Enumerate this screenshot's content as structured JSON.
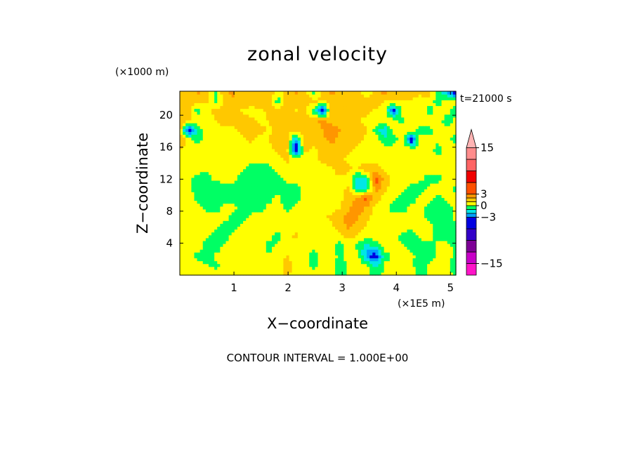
{
  "chart_data": {
    "type": "heatmap",
    "title": "zonal velocity",
    "xlabel": "X−coordinate",
    "ylabel": "Z−coordinate",
    "x_unit": "(×1E5 m)",
    "y_unit": "(×1000 m)",
    "time_label": "t=21000 s",
    "footer": "CONTOUR INTERVAL = 1.000E+00",
    "xlim": [
      0,
      5.1
    ],
    "ylim": [
      0,
      23
    ],
    "x_ticks": [
      "1",
      "2",
      "3",
      "4",
      "5"
    ],
    "x_tick_values": [
      1,
      2,
      3,
      4,
      5
    ],
    "y_ticks": [
      "4",
      "8",
      "12",
      "16",
      "20"
    ],
    "y_tick_values": [
      4,
      8,
      12,
      16,
      20
    ],
    "colorbar": {
      "tick_labels": [
        "15",
        "3",
        "0",
        "−3",
        "−15"
      ],
      "tick_values": [
        15,
        3,
        0,
        -3,
        -15
      ],
      "levels": [
        {
          "from": -18,
          "to": -15,
          "color": "#ff14c8"
        },
        {
          "from": -15,
          "to": -12,
          "color": "#c800c8"
        },
        {
          "from": -12,
          "to": -9,
          "color": "#7d0096"
        },
        {
          "from": -9,
          "to": -6,
          "color": "#3200c8"
        },
        {
          "from": -6,
          "to": -3,
          "color": "#0000e1"
        },
        {
          "from": -3,
          "to": -2,
          "color": "#00a0ff"
        },
        {
          "from": -2,
          "to": -1,
          "color": "#00e6e6"
        },
        {
          "from": -1,
          "to": 0,
          "color": "#00ff64"
        },
        {
          "from": 0,
          "to": 1,
          "color": "#ffff00"
        },
        {
          "from": 1,
          "to": 2,
          "color": "#ffc800"
        },
        {
          "from": 2,
          "to": 3,
          "color": "#ff9600"
        },
        {
          "from": 3,
          "to": 6,
          "color": "#ff5000"
        },
        {
          "from": 6,
          "to": 9,
          "color": "#f00000"
        },
        {
          "from": 9,
          "to": 12,
          "color": "#ff6464"
        },
        {
          "from": 12,
          "to": 15,
          "color": "#ff8c8c"
        },
        {
          "from": 15,
          "to": 18,
          "color": "#ffb4b4"
        }
      ]
    },
    "field": {
      "nx": 32,
      "nz": 20,
      "x_range": [
        0,
        5.1
      ],
      "z_range": [
        0,
        23
      ],
      "note_rows": "rows listed from bottom (z=0) to top (z=23), m/s",
      "values": [
        [
          0.5,
          0.4,
          0.3,
          0.6,
          0.4,
          0.2,
          0.5,
          0.7,
          0.4,
          0.3,
          0.5,
          0.8,
          1.2,
          0.6,
          0.3,
          0.5,
          0.7,
          0.2,
          -0.4,
          0.2,
          0.6,
          0.4,
          -0.6,
          0.3,
          0.5,
          0.8,
          0.4,
          -0.3,
          0.2,
          0.4,
          0.3,
          -0.2
        ],
        [
          0.3,
          0.6,
          0.4,
          0.2,
          -0.3,
          0.3,
          0.6,
          0.8,
          0.5,
          0.2,
          0.4,
          0.6,
          1.4,
          0.8,
          0.2,
          -0.2,
          0.4,
          0.6,
          -0.8,
          0.4,
          0.7,
          0.3,
          -1.2,
          0.2,
          0.4,
          0.6,
          0.2,
          -0.6,
          0.3,
          0.5,
          0.2,
          -0.4
        ],
        [
          0.4,
          0.3,
          -0.4,
          -0.6,
          0.2,
          0.4,
          0.3,
          0.5,
          0.7,
          0.3,
          0.2,
          0.4,
          1.1,
          0.6,
          0.4,
          -0.5,
          0.3,
          0.5,
          -0.3,
          0.6,
          0.4,
          -2.5,
          -4.0,
          -0.5,
          0.3,
          0.5,
          0.2,
          -0.4,
          -0.8,
          0.3,
          0.4,
          -0.3
        ],
        [
          0.2,
          0.5,
          0.6,
          -0.5,
          -0.7,
          0.3,
          0.5,
          0.3,
          0.4,
          0.6,
          -0.4,
          0.3,
          0.8,
          0.5,
          0.3,
          0.4,
          0.6,
          0.4,
          -0.5,
          0.3,
          -0.4,
          -1.5,
          -0.8,
          0.4,
          0.6,
          0.3,
          -0.5,
          -0.7,
          -0.6,
          0.4,
          0.6,
          -0.5
        ],
        [
          0.6,
          0.4,
          0.3,
          0.2,
          -0.5,
          -0.6,
          0.4,
          0.6,
          0.3,
          0.5,
          0.3,
          -0.4,
          0.6,
          1.2,
          0.5,
          0.3,
          0.4,
          0.6,
          0.5,
          1.4,
          0.8,
          0.3,
          0.5,
          0.6,
          0.4,
          -0.4,
          -0.6,
          0.3,
          0.5,
          -0.5,
          -0.7,
          -0.6
        ],
        [
          0.5,
          0.3,
          0.5,
          0.4,
          0.3,
          -0.4,
          -0.5,
          0.3,
          0.6,
          0.4,
          0.5,
          0.3,
          0.4,
          0.8,
          0.6,
          0.4,
          0.5,
          0.7,
          1.5,
          2.2,
          1.6,
          0.8,
          0.5,
          0.4,
          0.6,
          0.4,
          0.3,
          0.5,
          0.4,
          -0.5,
          -0.8,
          -0.6
        ],
        [
          0.4,
          0.6,
          0.4,
          0.5,
          0.6,
          0.4,
          -0.3,
          -0.5,
          0.4,
          0.5,
          0.3,
          0.4,
          0.6,
          0.5,
          0.7,
          0.6,
          0.8,
          1.2,
          1.8,
          2.6,
          2.0,
          1.2,
          0.6,
          0.5,
          0.3,
          0.5,
          0.6,
          0.4,
          -0.3,
          -0.6,
          -0.5,
          0.4
        ],
        [
          0.5,
          0.6,
          0.3,
          -0.4,
          -0.6,
          0.3,
          0.4,
          -0.4,
          -0.6,
          -0.5,
          0.3,
          0.5,
          -0.4,
          0.3,
          0.6,
          0.5,
          0.4,
          0.6,
          1.0,
          1.8,
          2.8,
          1.8,
          0.7,
          0.4,
          -0.4,
          -0.6,
          0.3,
          0.5,
          -0.5,
          -0.6,
          -0.4,
          0.3
        ],
        [
          0.6,
          0.5,
          -0.5,
          -0.7,
          -0.8,
          -0.6,
          -0.5,
          -0.7,
          -0.8,
          -0.6,
          -0.4,
          0.3,
          -0.5,
          -0.6,
          0.4,
          0.5,
          0.3,
          0.5,
          0.8,
          1.4,
          2.4,
          3.4,
          1.5,
          0.6,
          0.3,
          -0.5,
          -0.7,
          0.3,
          0.4,
          -0.4,
          0.3,
          0.5
        ],
        [
          0.7,
          0.4,
          -0.6,
          -0.8,
          -0.7,
          -0.5,
          -0.6,
          -0.8,
          -0.7,
          -0.8,
          -0.6,
          -0.4,
          -0.6,
          -0.4,
          0.3,
          0.4,
          0.6,
          0.4,
          0.7,
          1.2,
          -1.4,
          -1.6,
          2.8,
          1.2,
          0.5,
          0.4,
          -0.5,
          -0.6,
          0.3,
          0.5,
          0.4,
          -0.3
        ],
        [
          0.5,
          0.3,
          -0.4,
          -0.6,
          0.3,
          0.4,
          0.5,
          -0.5,
          -0.7,
          -0.6,
          -0.7,
          -0.5,
          0.4,
          0.5,
          0.3,
          0.6,
          0.5,
          0.6,
          0.8,
          0.7,
          -1.8,
          -0.9,
          3.6,
          1.6,
          0.6,
          0.4,
          0.6,
          0.3,
          -0.5,
          -0.4,
          0.3,
          0.5
        ],
        [
          0.6,
          0.5,
          0.4,
          0.3,
          0.5,
          0.6,
          0.4,
          0.3,
          -0.5,
          -0.6,
          -0.4,
          0.5,
          0.6,
          0.8,
          0.6,
          0.4,
          0.7,
          0.8,
          1.6,
          1.2,
          0.9,
          1.8,
          1.4,
          0.7,
          0.5,
          0.6,
          0.4,
          0.5,
          0.6,
          0.4,
          0.5,
          0.4
        ],
        [
          0.8,
          0.6,
          0.5,
          0.4,
          0.3,
          0.5,
          0.6,
          0.5,
          0.4,
          0.3,
          0.6,
          0.8,
          1.2,
          0.8,
          0.5,
          0.6,
          1.2,
          1.6,
          1.2,
          0.8,
          0.6,
          0.7,
          0.8,
          0.5,
          0.6,
          0.4,
          0.5,
          0.7,
          0.6,
          0.5,
          0.4,
          0.6
        ],
        [
          1.1,
          0.5,
          0.6,
          0.8,
          0.5,
          0.4,
          0.6,
          0.7,
          0.6,
          0.5,
          0.8,
          1.2,
          1.6,
          -4.5,
          1.2,
          0.8,
          1.4,
          1.8,
          1.5,
          1.2,
          0.8,
          0.6,
          0.5,
          0.4,
          0.6,
          0.8,
          0.6,
          0.5,
          0.7,
          -0.6,
          0.5,
          0.6
        ],
        [
          1.8,
          0.7,
          -0.6,
          0.6,
          0.8,
          0.6,
          0.5,
          0.8,
          1.2,
          0.7,
          1.0,
          1.6,
          1.8,
          -2.5,
          1.5,
          1.2,
          1.8,
          2.2,
          1.8,
          1.4,
          1.2,
          0.8,
          0.6,
          -0.5,
          -0.6,
          0.7,
          -4.0,
          0.6,
          0.5,
          0.4,
          0.3,
          -0.5
        ],
        [
          1.5,
          -4.0,
          -0.6,
          0.5,
          0.7,
          0.9,
          0.8,
          1.2,
          1.6,
          1.2,
          0.9,
          1.2,
          1.5,
          1.2,
          1.8,
          1.6,
          2.0,
          2.4,
          2.0,
          1.6,
          1.4,
          1.0,
          -0.5,
          -2.0,
          0.6,
          0.8,
          0.5,
          -0.6,
          -0.5,
          0.6,
          0.5,
          0.4
        ],
        [
          2.2,
          1.2,
          0.8,
          0.6,
          1.0,
          1.2,
          1.4,
          1.6,
          1.2,
          0.8,
          1.0,
          1.4,
          1.8,
          1.6,
          1.4,
          1.8,
          2.2,
          1.8,
          1.5,
          1.2,
          1.0,
          0.8,
          0.7,
          0.6,
          0.8,
          -0.5,
          0.7,
          0.6,
          0.8,
          0.5,
          -0.6,
          0.4
        ],
        [
          1.8,
          1.5,
          -0.7,
          0.8,
          1.2,
          1.5,
          1.2,
          0.9,
          0.7,
          0.8,
          1.2,
          1.6,
          1.2,
          0.9,
          1.4,
          -0.6,
          -4.2,
          1.6,
          1.2,
          1.6,
          1.4,
          1.2,
          0.8,
          0.6,
          -4.0,
          0.7,
          0.6,
          0.8,
          -0.5,
          0.6,
          0.4,
          -0.6
        ],
        [
          1.5,
          1.8,
          1.4,
          1.2,
          -0.5,
          1.2,
          1.6,
          1.8,
          1.2,
          1.6,
          1.4,
          -0.6,
          1.8,
          1.6,
          1.2,
          1.4,
          1.0,
          1.2,
          1.4,
          1.0,
          1.2,
          1.6,
          1.8,
          0.8,
          1.2,
          1.0,
          0.8,
          0.6,
          0.7,
          -0.6,
          0.8,
          0.5
        ],
        [
          1.6,
          0.9,
          2.2,
          1.4,
          -0.4,
          1.8,
          2.4,
          1.2,
          1.6,
          2.0,
          1.8,
          0.6,
          1.6,
          2.2,
          1.8,
          -0.5,
          1.4,
          2.4,
          1.6,
          1.8,
          2.2,
          -0.5,
          1.6,
          2.4,
          1.4,
          1.8,
          2.0,
          1.2,
          1.6,
          -0.4,
          -2.0,
          -4.5
        ]
      ]
    }
  }
}
